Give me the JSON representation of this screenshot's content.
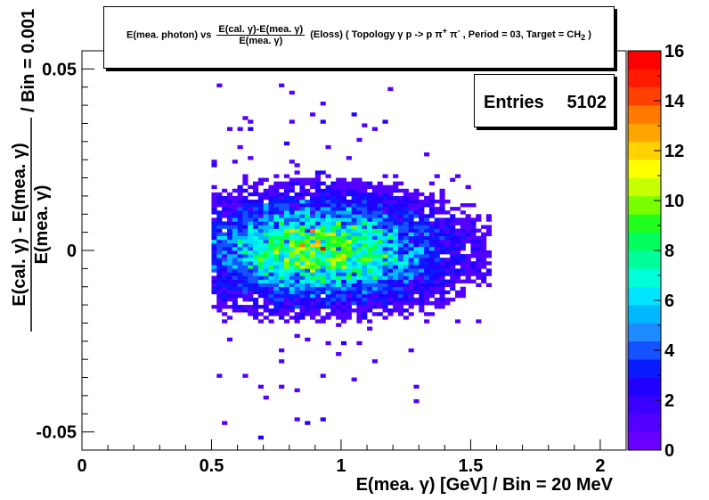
{
  "title": {
    "prefix": "E(mea. photon) vs",
    "frac_num": "E(cal. γ)-E(mea. γ)",
    "frac_den": "E(mea. γ)",
    "suffix_html": "(Eloss) ( Topology γ p -> p π<sup>+</sup> π<sup>-</sup> , Period = 03, Target = CH<sub>2</sub> )"
  },
  "stats": {
    "label": "Entries",
    "value": "5102"
  },
  "chart_data": {
    "type": "heatmap",
    "x_label": "E(mea. γ) [GeV] / Bin = 20 MeV",
    "y_label_num": "E(cal. γ) - E(mea. γ)",
    "y_label_den": "E(mea. γ)",
    "y_label_suffix": "/ Bin = 0.001",
    "xlim": [
      0,
      2.1
    ],
    "ylim": [
      -0.055,
      0.055
    ],
    "x_ticks": [
      {
        "v": 0,
        "label": "0"
      },
      {
        "v": 0.5,
        "label": "0.5"
      },
      {
        "v": 1,
        "label": "1"
      },
      {
        "v": 1.5,
        "label": "1.5"
      },
      {
        "v": 2,
        "label": "2"
      }
    ],
    "y_ticks": [
      {
        "v": -0.05,
        "label": "-0.05"
      },
      {
        "v": 0,
        "label": "0"
      },
      {
        "v": 0.05,
        "label": "0.05"
      }
    ],
    "z_range": [
      0,
      16
    ],
    "z_ticks": [
      0,
      2,
      4,
      6,
      8,
      10,
      12,
      14,
      16
    ],
    "entries": 5102,
    "bin_width_x": 0.02,
    "bin_width_y": 0.001,
    "palette": [
      "#6a00ff",
      "#5200ff",
      "#3a00ff",
      "#2200ff",
      "#0a1aff",
      "#1452ff",
      "#1e8aff",
      "#00b8ff",
      "#00e5ff",
      "#00ffd8",
      "#00ff9a",
      "#00ff5c",
      "#22ff1e",
      "#7aff00",
      "#c8ff00",
      "#ffff00",
      "#ffd200",
      "#ffa500",
      "#ff7800",
      "#ff4000",
      "#ff1a00",
      "#ff0000"
    ],
    "distribution": {
      "x_min": 0.5,
      "x_max": 1.58,
      "x_peak": 0.92,
      "y_core_sigma": 0.0085,
      "y_tail_max": 0.053,
      "peak_bin": {
        "x": 0.92,
        "y": 0.0,
        "count": 16
      }
    }
  }
}
